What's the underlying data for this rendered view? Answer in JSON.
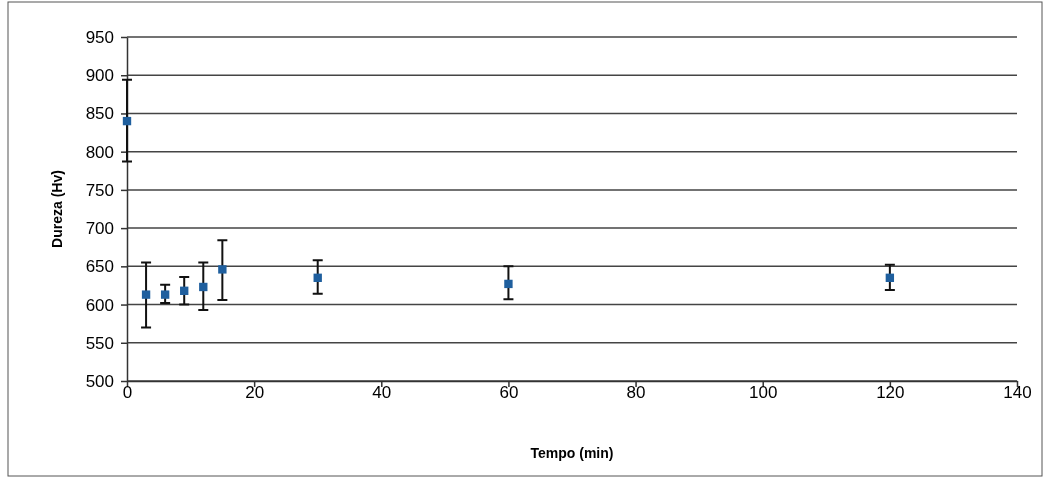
{
  "chart_data": {
    "type": "scatter",
    "xlabel": "Tempo (min)",
    "ylabel": "Dureza (Hv)",
    "x": [
      0,
      3,
      6,
      9,
      12,
      15,
      30,
      60,
      120
    ],
    "series": [
      {
        "color": "#1f5f9e",
        "values": [
          840,
          613,
          613,
          618,
          623,
          646,
          635,
          627,
          635
        ],
        "errors": [
          [
            787,
            894
          ],
          [
            570,
            655
          ],
          [
            602,
            626
          ],
          [
            600,
            636
          ],
          [
            593,
            655
          ],
          [
            606,
            684
          ],
          [
            614,
            658
          ],
          [
            607,
            650
          ],
          [
            619,
            652
          ]
        ]
      }
    ],
    "xlim": [
      0,
      140
    ],
    "xticks": [
      0,
      20,
      40,
      60,
      80,
      100,
      120,
      140
    ],
    "ylim": [
      500,
      950
    ],
    "yticks": [
      500,
      550,
      600,
      650,
      700,
      750,
      800,
      850,
      900,
      950
    ],
    "grid": "y",
    "marker": "square"
  }
}
